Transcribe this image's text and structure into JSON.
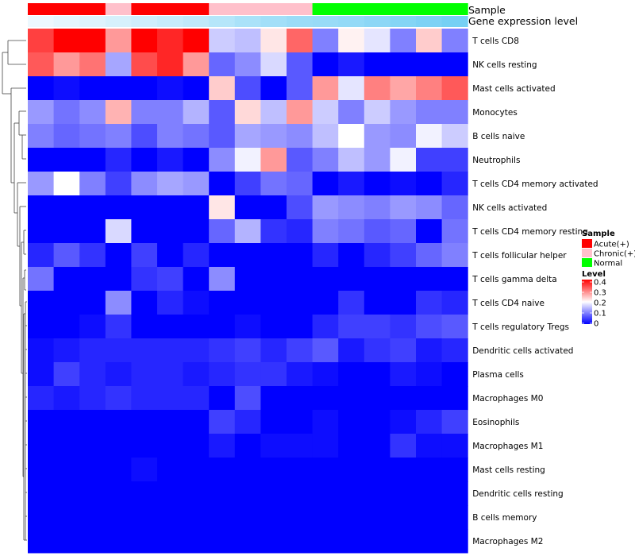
{
  "chart_data": {
    "type": "heatmap",
    "annotation_labels": [
      "Sample",
      "Gene expression level"
    ],
    "columns": [
      {
        "sample": "Acute(+)",
        "expr": 0.05
      },
      {
        "sample": "Acute(+)",
        "expr": 0.1
      },
      {
        "sample": "Acute(+)",
        "expr": 0.15
      },
      {
        "sample": "Chronic(+)",
        "expr": 0.2
      },
      {
        "sample": "Acute(+)",
        "expr": 0.25
      },
      {
        "sample": "Acute(+)",
        "expr": 0.3
      },
      {
        "sample": "Acute(+)",
        "expr": 0.35
      },
      {
        "sample": "Chronic(+)",
        "expr": 0.42
      },
      {
        "sample": "Chronic(+)",
        "expr": 0.5
      },
      {
        "sample": "Chronic(+)",
        "expr": 0.55
      },
      {
        "sample": "Chronic(+)",
        "expr": 0.6
      },
      {
        "sample": "Normal",
        "expr": 0.62
      },
      {
        "sample": "Normal",
        "expr": 0.65
      },
      {
        "sample": "Normal",
        "expr": 0.7
      },
      {
        "sample": "Normal",
        "expr": 0.75
      },
      {
        "sample": "Normal",
        "expr": 0.8
      },
      {
        "sample": "Normal",
        "expr": 0.85
      }
    ],
    "rows": [
      "T cells CD8",
      "NK cells resting",
      "Mast cells activated",
      "Monocytes",
      "B cells naive",
      "Neutrophils",
      "T cells CD4 memory activated",
      "NK cells activated",
      "T cells CD4 memory resting",
      "T cells follicular helper",
      "T cells gamma delta",
      "T cells CD4 naive",
      "T cells regulatory  Tregs",
      "Dendritic cells activated",
      "Plasma cells",
      "Macrophages M0",
      "Eosinophils",
      "Macrophages M1",
      "Mast cells resting",
      "Dendritic cells resting",
      "B cells memory",
      "Macrophages M2"
    ],
    "values": [
      [
        0.35,
        0.4,
        0.4,
        0.28,
        0.4,
        0.37,
        0.4,
        0.16,
        0.15,
        0.22,
        0.32,
        0.1,
        0.21,
        0.18,
        0.1,
        0.24,
        0.1
      ],
      [
        0.33,
        0.28,
        0.31,
        0.13,
        0.34,
        0.37,
        0.28,
        0.08,
        0.11,
        0.17,
        0.07,
        0.0,
        0.02,
        0.0,
        0.0,
        0.0,
        0.0
      ],
      [
        0.0,
        0.01,
        0.0,
        0.0,
        0.0,
        0.01,
        0.0,
        0.24,
        0.06,
        0.0,
        0.07,
        0.28,
        0.18,
        0.3,
        0.27,
        0.3,
        0.33
      ],
      [
        0.12,
        0.09,
        0.11,
        0.26,
        0.1,
        0.1,
        0.14,
        0.07,
        0.23,
        0.15,
        0.28,
        0.16,
        0.1,
        0.16,
        0.12,
        0.1,
        0.1
      ],
      [
        0.1,
        0.08,
        0.09,
        0.1,
        0.06,
        0.1,
        0.09,
        0.07,
        0.13,
        0.12,
        0.11,
        0.15,
        0.2,
        0.12,
        0.11,
        0.19,
        0.16
      ],
      [
        0.0,
        0.0,
        0.0,
        0.03,
        0.0,
        0.02,
        0.0,
        0.11,
        0.19,
        0.28,
        0.07,
        0.1,
        0.15,
        0.12,
        0.19,
        0.05,
        0.05
      ],
      [
        0.12,
        0.2,
        0.1,
        0.05,
        0.11,
        0.13,
        0.12,
        0.0,
        0.05,
        0.09,
        0.08,
        0.0,
        0.02,
        0.0,
        0.01,
        0.0,
        0.03
      ],
      [
        0.0,
        0.0,
        0.0,
        0.0,
        0.0,
        0.0,
        0.0,
        0.22,
        0.0,
        0.0,
        0.06,
        0.12,
        0.11,
        0.1,
        0.12,
        0.11,
        0.08
      ],
      [
        0.0,
        0.0,
        0.0,
        0.17,
        0.0,
        0.0,
        0.0,
        0.08,
        0.14,
        0.04,
        0.03,
        0.1,
        0.09,
        0.07,
        0.08,
        0.0,
        0.09
      ],
      [
        0.03,
        0.07,
        0.04,
        0.0,
        0.05,
        0.0,
        0.03,
        0.0,
        0.0,
        0.0,
        0.0,
        0.03,
        0.0,
        0.03,
        0.05,
        0.08,
        0.1
      ],
      [
        0.09,
        0.0,
        0.0,
        0.0,
        0.04,
        0.05,
        0.0,
        0.11,
        0.0,
        0.0,
        0.0,
        0.0,
        0.0,
        0.0,
        0.0,
        0.0,
        0.0
      ],
      [
        0.0,
        0.0,
        0.0,
        0.11,
        0.0,
        0.03,
        0.01,
        0.0,
        0.0,
        0.0,
        0.0,
        0.0,
        0.04,
        0.0,
        0.0,
        0.04,
        0.03
      ],
      [
        0.0,
        0.0,
        0.01,
        0.04,
        0.0,
        0.0,
        0.0,
        0.0,
        0.01,
        0.0,
        0.0,
        0.03,
        0.05,
        0.05,
        0.04,
        0.06,
        0.07
      ],
      [
        0.01,
        0.02,
        0.03,
        0.03,
        0.03,
        0.03,
        0.03,
        0.04,
        0.05,
        0.03,
        0.05,
        0.07,
        0.02,
        0.04,
        0.05,
        0.02,
        0.03
      ],
      [
        0.01,
        0.05,
        0.03,
        0.02,
        0.03,
        0.03,
        0.02,
        0.03,
        0.04,
        0.04,
        0.02,
        0.01,
        0.0,
        0.0,
        0.02,
        0.01,
        0.0
      ],
      [
        0.03,
        0.02,
        0.03,
        0.04,
        0.03,
        0.03,
        0.03,
        0.0,
        0.06,
        0.0,
        0.0,
        0.0,
        0.0,
        0.0,
        0.0,
        0.0,
        0.0
      ],
      [
        0.0,
        0.0,
        0.0,
        0.0,
        0.0,
        0.0,
        0.0,
        0.05,
        0.03,
        0.0,
        0.0,
        0.01,
        0.0,
        0.0,
        0.01,
        0.03,
        0.05
      ],
      [
        0.0,
        0.0,
        0.0,
        0.0,
        0.0,
        0.0,
        0.0,
        0.02,
        0.0,
        0.01,
        0.01,
        0.01,
        0.0,
        0.0,
        0.04,
        0.01,
        0.01
      ],
      [
        0.0,
        0.0,
        0.0,
        0.0,
        0.01,
        0.0,
        0.0,
        0.0,
        0.0,
        0.0,
        0.0,
        0.0,
        0.0,
        0.0,
        0.0,
        0.0,
        0.0
      ],
      [
        0.0,
        0.0,
        0.0,
        0.0,
        0.0,
        0.0,
        0.0,
        0.0,
        0.0,
        0.0,
        0.0,
        0.0,
        0.0,
        0.0,
        0.0,
        0.0,
        0.0
      ],
      [
        0.0,
        0.0,
        0.0,
        0.0,
        0.0,
        0.0,
        0.0,
        0.0,
        0.0,
        0.0,
        0.0,
        0.0,
        0.0,
        0.0,
        0.0,
        0.0,
        0.0
      ],
      [
        0.0,
        0.0,
        0.0,
        0.0,
        0.0,
        0.0,
        0.0,
        0.0,
        0.0,
        0.0,
        0.0,
        0.0,
        0.0,
        0.0,
        0.0,
        0.0,
        0.0
      ]
    ],
    "color_scale": {
      "min": 0,
      "mid": 0.2,
      "max": 0.4,
      "low": "#0000ff",
      "midcolor": "#ffffff",
      "high": "#ff0000"
    },
    "expr_colors": {
      "low": "#f4fbff",
      "high": "#5fc8f2"
    },
    "legend": {
      "sample_title": "Sample",
      "sample_groups": [
        {
          "name": "Acute(+)",
          "color": "#ff0000"
        },
        {
          "name": "Chronic(+)",
          "color": "#ffc0cb"
        },
        {
          "name": "Normal",
          "color": "#00ff00"
        }
      ],
      "level_title": "Level",
      "level_ticks": [
        "0.4",
        "0.3",
        "0.2",
        "0.1",
        "0"
      ],
      "position": "right"
    },
    "row_dendrogram": true
  }
}
